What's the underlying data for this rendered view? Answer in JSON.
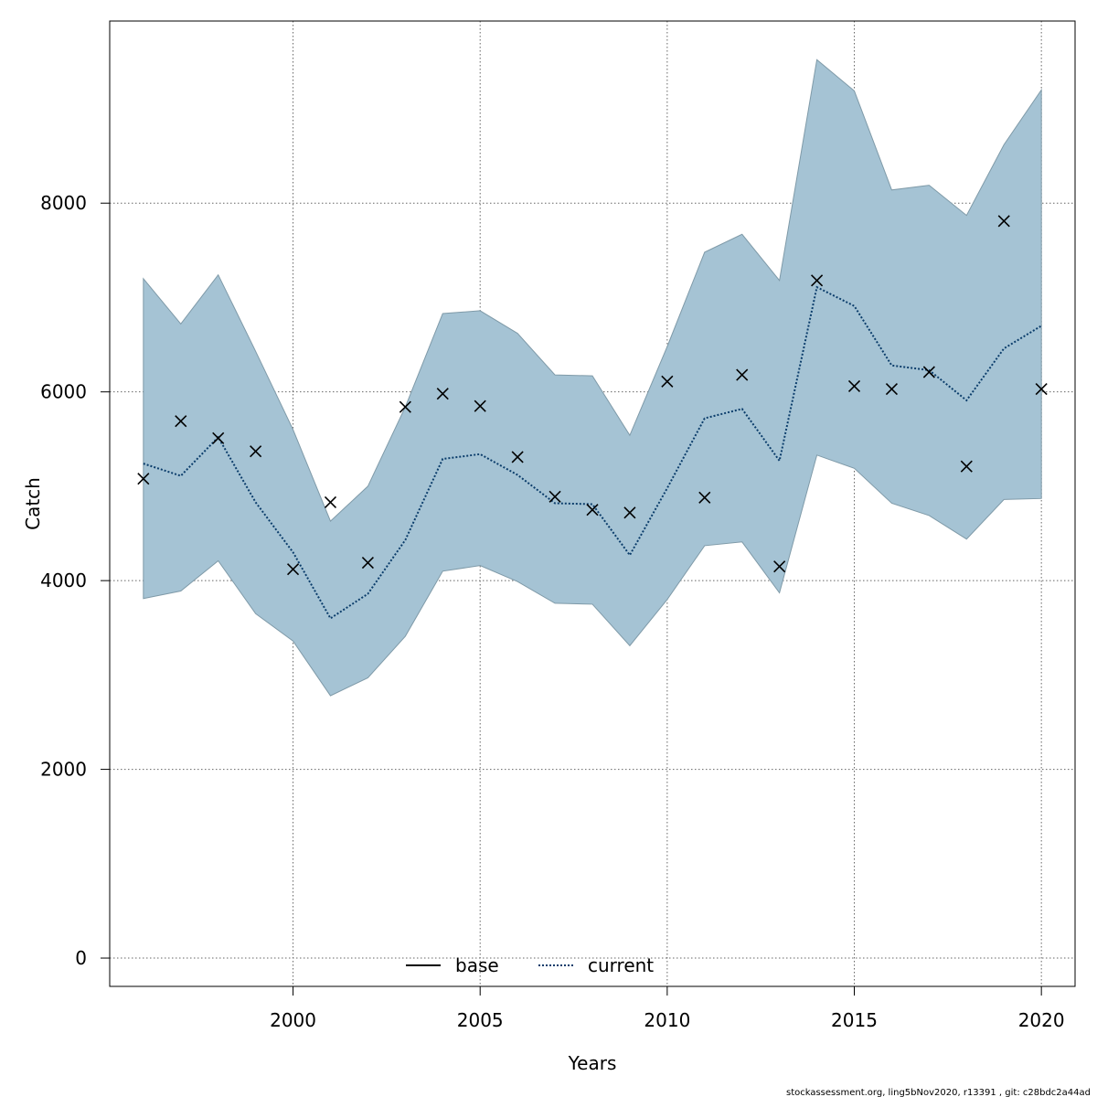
{
  "chart_data": {
    "type": "line",
    "xlabel": "Years",
    "ylabel": "Catch",
    "xlim": [
      1995.1,
      2020.9
    ],
    "ylim": [
      -300,
      9930
    ],
    "x_ticks": [
      2000,
      2005,
      2010,
      2015,
      2020
    ],
    "y_ticks": [
      0,
      2000,
      4000,
      6000,
      8000
    ],
    "grid": true,
    "legend": {
      "placement": "bottom-center",
      "entries": [
        {
          "label": "base",
          "color": "#000000",
          "dash": "solid"
        },
        {
          "label": "current",
          "color": "#0b3d6b",
          "dash": "dotted"
        }
      ]
    },
    "x": [
      1996,
      1997,
      1998,
      1999,
      2000,
      2001,
      2002,
      2003,
      2004,
      2005,
      2006,
      2007,
      2008,
      2009,
      2010,
      2011,
      2012,
      2013,
      2014,
      2015,
      2016,
      2017,
      2018,
      2019,
      2020
    ],
    "band": {
      "upper": [
        7200,
        6720,
        7240,
        6430,
        5600,
        4630,
        5000,
        5840,
        6830,
        6860,
        6620,
        6180,
        6170,
        5540,
        6480,
        7480,
        7670,
        7180,
        9520,
        9190,
        8140,
        8190,
        7870,
        8620,
        9200
      ],
      "lower": [
        3810,
        3890,
        4210,
        3650,
        3360,
        2780,
        2970,
        3410,
        4100,
        4160,
        3990,
        3760,
        3750,
        3310,
        3800,
        4370,
        4410,
        3870,
        5330,
        5190,
        4820,
        4690,
        4440,
        4860,
        4870
      ],
      "color": "#a5c3d4"
    },
    "series": [
      {
        "name": "current",
        "values": [
          5240,
          5110,
          5520,
          4830,
          4300,
          3600,
          3860,
          4430,
          5290,
          5340,
          5120,
          4820,
          4810,
          4270,
          4980,
          5720,
          5820,
          5270,
          7110,
          6910,
          6280,
          6230,
          5910,
          6460,
          6700
        ],
        "color": "#0b3d6b"
      }
    ],
    "observed": {
      "marker": "x",
      "values": [
        5080,
        5690,
        5510,
        5370,
        4120,
        4830,
        4190,
        5840,
        5980,
        5850,
        5310,
        4890,
        4750,
        4720,
        6110,
        4880,
        6180,
        4150,
        7180,
        6060,
        6030,
        6210,
        5210,
        7810,
        6030
      ]
    }
  },
  "footer": {
    "note": "stockassessment.org, ling5bNov2020, r13391 , git: c28bdc2a44ad"
  }
}
